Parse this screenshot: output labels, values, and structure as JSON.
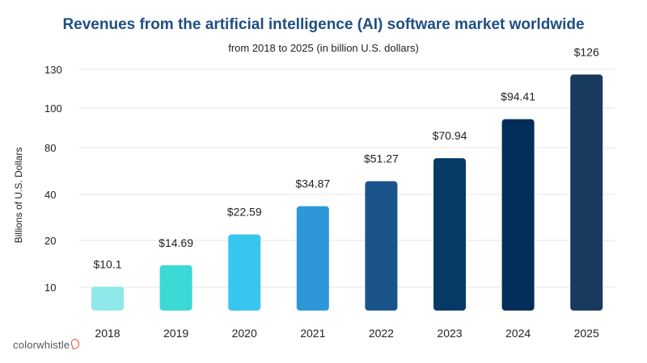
{
  "header": {
    "title": "Revenues from the artificial intelligence (AI) software market worldwide",
    "subtitle": "from 2018 to 2025 (in billion U.S. dollars)"
  },
  "brand": {
    "logo_text": "colorwhistle"
  },
  "chart_data": {
    "type": "bar",
    "title": "Revenues from the artificial intelligence (AI) software market worldwide",
    "subtitle": "from 2018 to 2025 (in billion U.S. dollars)",
    "ylabel": "Billions of U.S. Dollars",
    "xlabel": "",
    "categories": [
      "2018",
      "2019",
      "2020",
      "2021",
      "2022",
      "2023",
      "2024",
      "2025"
    ],
    "values": [
      10.1,
      14.69,
      22.59,
      34.87,
      51.27,
      70.94,
      94.41,
      126
    ],
    "data_labels": [
      "$10.1",
      "$14.69",
      "$22.59",
      "$34.87",
      "$51.27",
      "$70.94",
      "$94.41",
      "$126"
    ],
    "y_ticks": [
      10,
      20,
      40,
      80,
      100,
      130
    ],
    "ylim": [
      0,
      130
    ],
    "grid": true,
    "legend": "none",
    "bar_colors": [
      "#8ee7e8",
      "#3dd9d6",
      "#39c6ee",
      "#2e97d8",
      "#1b548b",
      "#083a66",
      "#032e59",
      "#173a5e"
    ]
  }
}
